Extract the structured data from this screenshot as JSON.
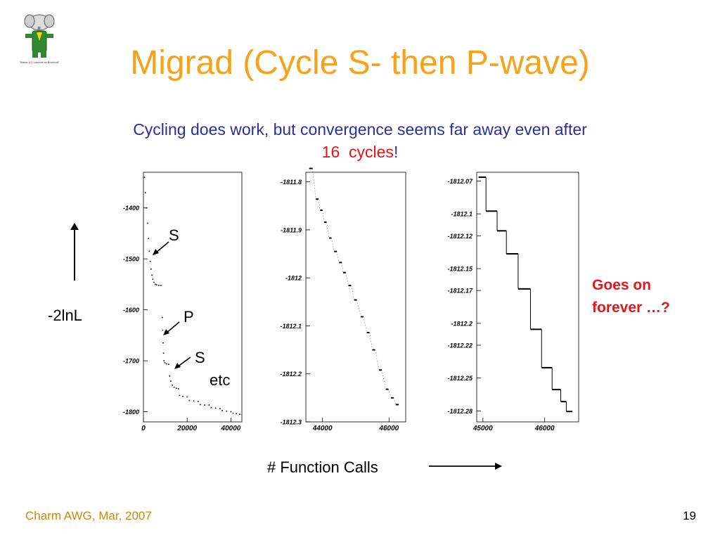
{
  "slide": {
    "title": "Migrad (Cycle S- then P-wave)",
    "subtitle_part1": "Cycling does work, but convergence seems far away even after ",
    "subtitle_highlight1": "16",
    "subtitle_highlight2": "cycles",
    "subtitle_end": "!",
    "y_quantity_label": "-2lnL",
    "annotation_s1": "S",
    "annotation_p": "P",
    "annotation_s2": "S",
    "annotation_etc": "etc",
    "note": "Goes on forever …?",
    "x_quantity_label": "# Function Calls",
    "footer_left": "Charm AWG, Mar, 2007",
    "page_number": "19",
    "logo_caption": "\"Babar (C) Laurent de Brunhoff\""
  },
  "colors": {
    "title": "#f6a21a",
    "subtitle": "#2b2f9a",
    "highlight": "#e8151b",
    "footer": "#c9890f"
  },
  "chart_data": [
    {
      "type": "scatter",
      "xlim": [
        0,
        45000
      ],
      "ylim": [
        -1820,
        -1330
      ],
      "x_ticks": [
        0,
        20000,
        40000
      ],
      "x_tick_labels": [
        "0",
        "20000",
        "40000"
      ],
      "y_ticks": [
        -1400,
        -1500,
        -1600,
        -1700,
        -1800
      ],
      "y_tick_labels": [
        "-1400",
        "-1500",
        "-1600",
        "-1700",
        "-1800"
      ],
      "grid": false,
      "points": [
        [
          500,
          -1340
        ],
        [
          900,
          -1370
        ],
        [
          1400,
          -1400
        ],
        [
          1900,
          -1430
        ],
        [
          2300,
          -1460
        ],
        [
          2700,
          -1485
        ],
        [
          3100,
          -1505
        ],
        [
          3500,
          -1520
        ],
        [
          3900,
          -1532
        ],
        [
          4300,
          -1540
        ],
        [
          4800,
          -1546
        ],
        [
          5400,
          -1550
        ],
        [
          6000,
          -1551
        ],
        [
          7000,
          -1552
        ],
        [
          8000,
          -1552
        ],
        [
          8600,
          -1615
        ],
        [
          8800,
          -1640
        ],
        [
          9000,
          -1665
        ],
        [
          9200,
          -1685
        ],
        [
          9400,
          -1700
        ],
        [
          9800,
          -1704
        ],
        [
          10500,
          -1706
        ],
        [
          11500,
          -1707
        ],
        [
          12000,
          -1730
        ],
        [
          12500,
          -1740
        ],
        [
          13200,
          -1748
        ],
        [
          14000,
          -1752
        ],
        [
          15000,
          -1754
        ],
        [
          16000,
          -1755
        ],
        [
          16500,
          -1768
        ],
        [
          18000,
          -1770
        ],
        [
          20000,
          -1771
        ],
        [
          21000,
          -1778
        ],
        [
          23000,
          -1779
        ],
        [
          25000,
          -1780
        ],
        [
          26000,
          -1786
        ],
        [
          28000,
          -1787
        ],
        [
          30000,
          -1787
        ],
        [
          31000,
          -1792
        ],
        [
          33000,
          -1793
        ],
        [
          35000,
          -1794
        ],
        [
          36000,
          -1798
        ],
        [
          38000,
          -1799
        ],
        [
          40000,
          -1800
        ],
        [
          41000,
          -1803
        ],
        [
          42500,
          -1804
        ],
        [
          44000,
          -1805
        ]
      ]
    },
    {
      "type": "scatter",
      "xlim": [
        43500,
        46500
      ],
      "ylim": [
        -1812.3,
        -1811.78
      ],
      "x_ticks": [
        44000,
        46000
      ],
      "x_tick_labels": [
        "44000",
        "46000"
      ],
      "y_ticks": [
        -1811.8,
        -1811.9,
        -1812,
        -1812.1,
        -1812.2,
        -1812.3
      ],
      "y_tick_labels": [
        "-1811.8",
        "-1811.9",
        "-1812",
        "-1812.1",
        "-1812.2",
        "-1812.3"
      ],
      "grid": false,
      "steps": [
        [
          43600,
          43700,
          -1811.772
        ],
        [
          43800,
          43880,
          -1811.836
        ],
        [
          43930,
          44000,
          -1811.859
        ],
        [
          44050,
          44120,
          -1811.884
        ],
        [
          44200,
          44270,
          -1811.917
        ],
        [
          44350,
          44430,
          -1811.945
        ],
        [
          44500,
          44580,
          -1811.968
        ],
        [
          44620,
          44700,
          -1811.989
        ],
        [
          44780,
          44860,
          -1812.016
        ],
        [
          44950,
          45030,
          -1812.046
        ],
        [
          45150,
          45230,
          -1812.081
        ],
        [
          45330,
          45410,
          -1812.114
        ],
        [
          45500,
          45580,
          -1812.15
        ],
        [
          45700,
          45780,
          -1812.192
        ],
        [
          45900,
          45980,
          -1812.232
        ],
        [
          46060,
          46140,
          -1812.25
        ],
        [
          46200,
          46290,
          -1812.264
        ]
      ]
    },
    {
      "type": "scatter",
      "xlim": [
        44900,
        46550
      ],
      "ylim": [
        -1812.29,
        -1812.062
      ],
      "x_ticks": [
        45000,
        46000
      ],
      "x_tick_labels": [
        "45000",
        "46000"
      ],
      "y_ticks": [
        -1812.07,
        -1812.1,
        -1812.12,
        -1812.15,
        -1812.17,
        -1812.2,
        -1812.22,
        -1812.25,
        -1812.28
      ],
      "y_tick_labels": [
        "-1812.07",
        "-1812.1",
        "-1812.12",
        "-1812.15",
        "-1812.17",
        "-1812.2",
        "-1812.22",
        "-1812.25",
        "-1812.28"
      ],
      "grid": false,
      "steps": [
        [
          44930,
          45050,
          -1812.0665
        ],
        [
          45050,
          45230,
          -1812.0975
        ],
        [
          45230,
          45380,
          -1812.1155
        ],
        [
          45380,
          45570,
          -1812.1365
        ],
        [
          45570,
          45770,
          -1812.1685
        ],
        [
          45770,
          45950,
          -1812.2055
        ],
        [
          45950,
          46120,
          -1812.2405
        ],
        [
          46120,
          46260,
          -1812.2605
        ],
        [
          46260,
          46350,
          -1812.2715
        ],
        [
          46350,
          46450,
          -1812.2805
        ]
      ]
    }
  ]
}
